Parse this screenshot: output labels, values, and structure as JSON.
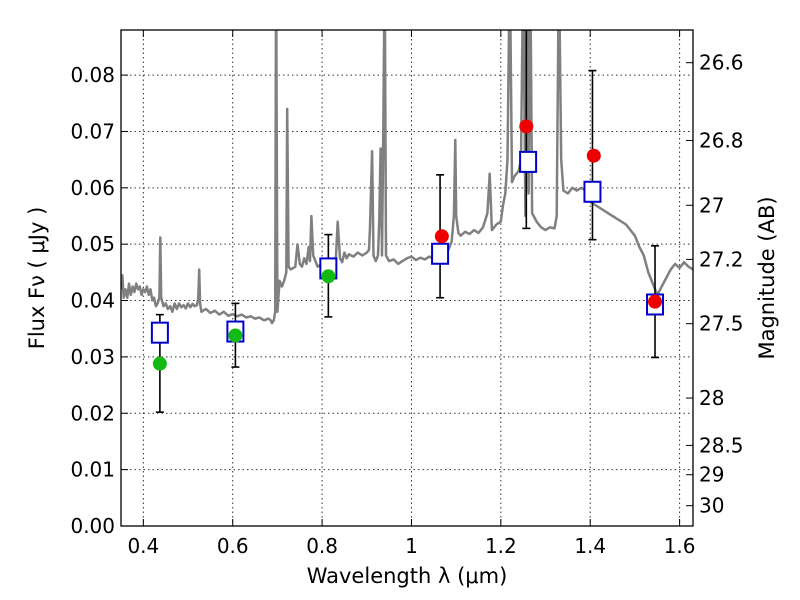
{
  "chart_data": {
    "type": "scatter",
    "xlabel": "Wavelength  λ (μm)",
    "ylabel": "Flux  Fν  ( μJy )",
    "ylabel_right": "Magnitude (AB)",
    "xlim": [
      0.35,
      1.63
    ],
    "ylim": [
      0.0,
      0.088
    ],
    "x_ticks": [
      0.4,
      0.6,
      0.8,
      1.0,
      1.2,
      1.4,
      1.6
    ],
    "x_tick_labels": [
      "0.4",
      "0.6",
      "0.8",
      "1",
      "1.2",
      "1.4",
      "1.6"
    ],
    "y_ticks": [
      0.0,
      0.01,
      0.02,
      0.03,
      0.04,
      0.05,
      0.06,
      0.07,
      0.08
    ],
    "y_tick_labels": [
      "0.00",
      "0.01",
      "0.02",
      "0.03",
      "0.04",
      "0.05",
      "0.06",
      "0.07",
      "0.08"
    ],
    "right_ticks": [
      {
        "label": "26.6",
        "flux": 0.0822
      },
      {
        "label": "26.8",
        "flux": 0.0684
      },
      {
        "label": "27",
        "flux": 0.0569
      },
      {
        "label": "27.2",
        "flux": 0.0473
      },
      {
        "label": "27.5",
        "flux": 0.0359
      },
      {
        "label": "28",
        "flux": 0.0227
      },
      {
        "label": "28.5",
        "flux": 0.0143
      },
      {
        "label": "29",
        "flux": 0.0091
      },
      {
        "label": "30",
        "flux": 0.0036
      }
    ],
    "grid": true,
    "series": [
      {
        "kind": "spectrum",
        "color": "#808080",
        "points": [
          [
            0.35,
            0.042
          ],
          [
            0.353,
            0.0445
          ],
          [
            0.356,
            0.0405
          ],
          [
            0.36,
            0.042
          ],
          [
            0.364,
            0.0405
          ],
          [
            0.368,
            0.043
          ],
          [
            0.372,
            0.041
          ],
          [
            0.376,
            0.0425
          ],
          [
            0.38,
            0.0415
          ],
          [
            0.384,
            0.043
          ],
          [
            0.388,
            0.042
          ],
          [
            0.392,
            0.0425
          ],
          [
            0.396,
            0.041
          ],
          [
            0.4,
            0.042
          ],
          [
            0.404,
            0.0415
          ],
          [
            0.408,
            0.0425
          ],
          [
            0.412,
            0.041
          ],
          [
            0.416,
            0.042
          ],
          [
            0.42,
            0.04
          ],
          [
            0.424,
            0.0405
          ],
          [
            0.428,
            0.039
          ],
          [
            0.432,
            0.0395
          ],
          [
            0.436,
            0.0405
          ],
          [
            0.438,
            0.0512
          ],
          [
            0.44,
            0.0405
          ],
          [
            0.445,
            0.039
          ],
          [
            0.45,
            0.0395
          ],
          [
            0.455,
            0.0385
          ],
          [
            0.46,
            0.039
          ],
          [
            0.465,
            0.038
          ],
          [
            0.47,
            0.0395
          ],
          [
            0.475,
            0.0385
          ],
          [
            0.48,
            0.0395
          ],
          [
            0.485,
            0.0388
          ],
          [
            0.49,
            0.0392
          ],
          [
            0.495,
            0.0386
          ],
          [
            0.5,
            0.0395
          ],
          [
            0.505,
            0.0388
          ],
          [
            0.51,
            0.0394
          ],
          [
            0.515,
            0.039
          ],
          [
            0.52,
            0.0392
          ],
          [
            0.523,
            0.0405
          ],
          [
            0.525,
            0.0455
          ],
          [
            0.527,
            0.0395
          ],
          [
            0.53,
            0.038
          ],
          [
            0.54,
            0.0385
          ],
          [
            0.55,
            0.0378
          ],
          [
            0.56,
            0.0382
          ],
          [
            0.57,
            0.0375
          ],
          [
            0.58,
            0.038
          ],
          [
            0.59,
            0.0373
          ],
          [
            0.6,
            0.0376
          ],
          [
            0.61,
            0.0372
          ],
          [
            0.62,
            0.0375
          ],
          [
            0.63,
            0.037
          ],
          [
            0.64,
            0.0372
          ],
          [
            0.65,
            0.0368
          ],
          [
            0.66,
            0.037
          ],
          [
            0.67,
            0.0365
          ],
          [
            0.68,
            0.0368
          ],
          [
            0.685,
            0.0365
          ],
          [
            0.688,
            0.036
          ],
          [
            0.692,
            0.0365
          ],
          [
            0.695,
            0.038
          ],
          [
            0.697,
            0.1
          ],
          [
            0.7,
            0.038
          ],
          [
            0.705,
            0.0435
          ],
          [
            0.71,
            0.0425
          ],
          [
            0.715,
            0.0435
          ],
          [
            0.72,
            0.045
          ],
          [
            0.722,
            0.074
          ],
          [
            0.725,
            0.046
          ],
          [
            0.73,
            0.0455
          ],
          [
            0.74,
            0.046
          ],
          [
            0.745,
            0.05
          ],
          [
            0.75,
            0.0465
          ],
          [
            0.755,
            0.046
          ],
          [
            0.76,
            0.0475
          ],
          [
            0.765,
            0.0465
          ],
          [
            0.77,
            0.0495
          ],
          [
            0.773,
            0.047
          ],
          [
            0.776,
            0.055
          ],
          [
            0.78,
            0.048
          ],
          [
            0.785,
            0.047
          ],
          [
            0.79,
            0.046
          ],
          [
            0.8,
            0.0465
          ],
          [
            0.81,
            0.046
          ],
          [
            0.82,
            0.0468
          ],
          [
            0.83,
            0.0462
          ],
          [
            0.835,
            0.054
          ],
          [
            0.84,
            0.0475
          ],
          [
            0.845,
            0.0468
          ],
          [
            0.85,
            0.0485
          ],
          [
            0.855,
            0.0475
          ],
          [
            0.86,
            0.0482
          ],
          [
            0.87,
            0.0478
          ],
          [
            0.88,
            0.0485
          ],
          [
            0.89,
            0.048
          ],
          [
            0.9,
            0.0485
          ],
          [
            0.905,
            0.049
          ],
          [
            0.907,
            0.0525
          ],
          [
            0.912,
            0.0665
          ],
          [
            0.915,
            0.048
          ],
          [
            0.92,
            0.047
          ],
          [
            0.925,
            0.048
          ],
          [
            0.928,
            0.0545
          ],
          [
            0.931,
            0.067
          ],
          [
            0.934,
            0.048
          ],
          [
            0.937,
            0.07
          ],
          [
            0.94,
            0.1
          ],
          [
            0.943,
            0.048
          ],
          [
            0.95,
            0.047
          ],
          [
            0.96,
            0.0473
          ],
          [
            0.97,
            0.0465
          ],
          [
            0.98,
            0.047
          ],
          [
            0.99,
            0.0475
          ],
          [
            1.0,
            0.0478
          ],
          [
            1.01,
            0.0472
          ],
          [
            1.02,
            0.0476
          ],
          [
            1.03,
            0.0473
          ],
          [
            1.04,
            0.0478
          ],
          [
            1.05,
            0.0474
          ],
          [
            1.06,
            0.0485
          ],
          [
            1.07,
            0.0495
          ],
          [
            1.08,
            0.0485
          ],
          [
            1.09,
            0.0505
          ],
          [
            1.095,
            0.055
          ],
          [
            1.098,
            0.0685
          ],
          [
            1.1,
            0.055
          ],
          [
            1.105,
            0.052
          ],
          [
            1.11,
            0.0515
          ],
          [
            1.12,
            0.0522
          ],
          [
            1.13,
            0.0518
          ],
          [
            1.14,
            0.0525
          ],
          [
            1.15,
            0.052
          ],
          [
            1.16,
            0.053
          ],
          [
            1.17,
            0.0555
          ],
          [
            1.175,
            0.0625
          ],
          [
            1.18,
            0.0525
          ],
          [
            1.19,
            0.0535
          ],
          [
            1.2,
            0.054
          ],
          [
            1.205,
            0.057
          ],
          [
            1.21,
            0.059
          ],
          [
            1.215,
            0.065
          ],
          [
            1.22,
            0.1
          ],
          [
            1.225,
            0.061
          ],
          [
            1.23,
            0.062
          ],
          [
            1.24,
            0.063
          ],
          [
            1.245,
            0.065
          ],
          [
            1.25,
            0.1
          ],
          [
            1.255,
            0.055
          ],
          [
            1.258,
            0.1
          ],
          [
            1.262,
            0.059
          ],
          [
            1.266,
            0.1
          ],
          [
            1.27,
            0.0555
          ],
          [
            1.28,
            0.054
          ],
          [
            1.29,
            0.053
          ],
          [
            1.3,
            0.0525
          ],
          [
            1.31,
            0.053
          ],
          [
            1.32,
            0.0528
          ],
          [
            1.325,
            0.055
          ],
          [
            1.33,
            0.1
          ],
          [
            1.335,
            0.065
          ],
          [
            1.34,
            0.0595
          ],
          [
            1.35,
            0.059
          ],
          [
            1.36,
            0.06
          ],
          [
            1.37,
            0.0595
          ],
          [
            1.38,
            0.06
          ],
          [
            1.39,
            0.0595
          ],
          [
            1.4,
            0.0575
          ],
          [
            1.42,
            0.0565
          ],
          [
            1.44,
            0.0555
          ],
          [
            1.46,
            0.0545
          ],
          [
            1.48,
            0.0535
          ],
          [
            1.5,
            0.0515
          ],
          [
            1.51,
            0.0495
          ],
          [
            1.52,
            0.048
          ],
          [
            1.53,
            0.045
          ],
          [
            1.54,
            0.043
          ],
          [
            1.55,
            0.041
          ],
          [
            1.56,
            0.0425
          ],
          [
            1.57,
            0.044
          ],
          [
            1.58,
            0.0455
          ],
          [
            1.59,
            0.0465
          ],
          [
            1.6,
            0.0458
          ],
          [
            1.61,
            0.0468
          ],
          [
            1.62,
            0.046
          ],
          [
            1.63,
            0.0455
          ]
        ]
      },
      {
        "kind": "errorbars",
        "color": "#000000",
        "points": [
          {
            "x": 0.437,
            "low": 0.0202,
            "high": 0.0375
          },
          {
            "x": 0.606,
            "low": 0.0282,
            "high": 0.0395
          },
          {
            "x": 0.814,
            "low": 0.0371,
            "high": 0.0517
          },
          {
            "x": 1.064,
            "low": 0.0405,
            "high": 0.0623
          },
          {
            "x": 1.257,
            "low": 0.0528,
            "high": 0.088
          },
          {
            "x": 1.405,
            "low": 0.0508,
            "high": 0.0808
          },
          {
            "x": 1.545,
            "low": 0.0299,
            "high": 0.0497
          }
        ]
      },
      {
        "kind": "model-squares",
        "color": "#0000cc",
        "points": [
          [
            0.437,
            0.0343
          ],
          [
            0.606,
            0.0345
          ],
          [
            0.814,
            0.0457
          ],
          [
            1.064,
            0.0483
          ],
          [
            1.261,
            0.0646
          ],
          [
            1.405,
            0.0593
          ],
          [
            1.545,
            0.0393
          ]
        ]
      },
      {
        "kind": "observed-points",
        "points": [
          {
            "x": 0.437,
            "y": 0.0288,
            "color": "#11bb11"
          },
          {
            "x": 0.606,
            "y": 0.0338,
            "color": "#11bb11"
          },
          {
            "x": 0.814,
            "y": 0.0443,
            "color": "#11bb11"
          },
          {
            "x": 1.068,
            "y": 0.0514,
            "color": "#ee0000"
          },
          {
            "x": 1.257,
            "y": 0.0709,
            "color": "#ee0000"
          },
          {
            "x": 1.408,
            "y": 0.0657,
            "color": "#ee0000"
          },
          {
            "x": 1.545,
            "y": 0.0398,
            "color": "#ee0000"
          }
        ]
      }
    ]
  }
}
